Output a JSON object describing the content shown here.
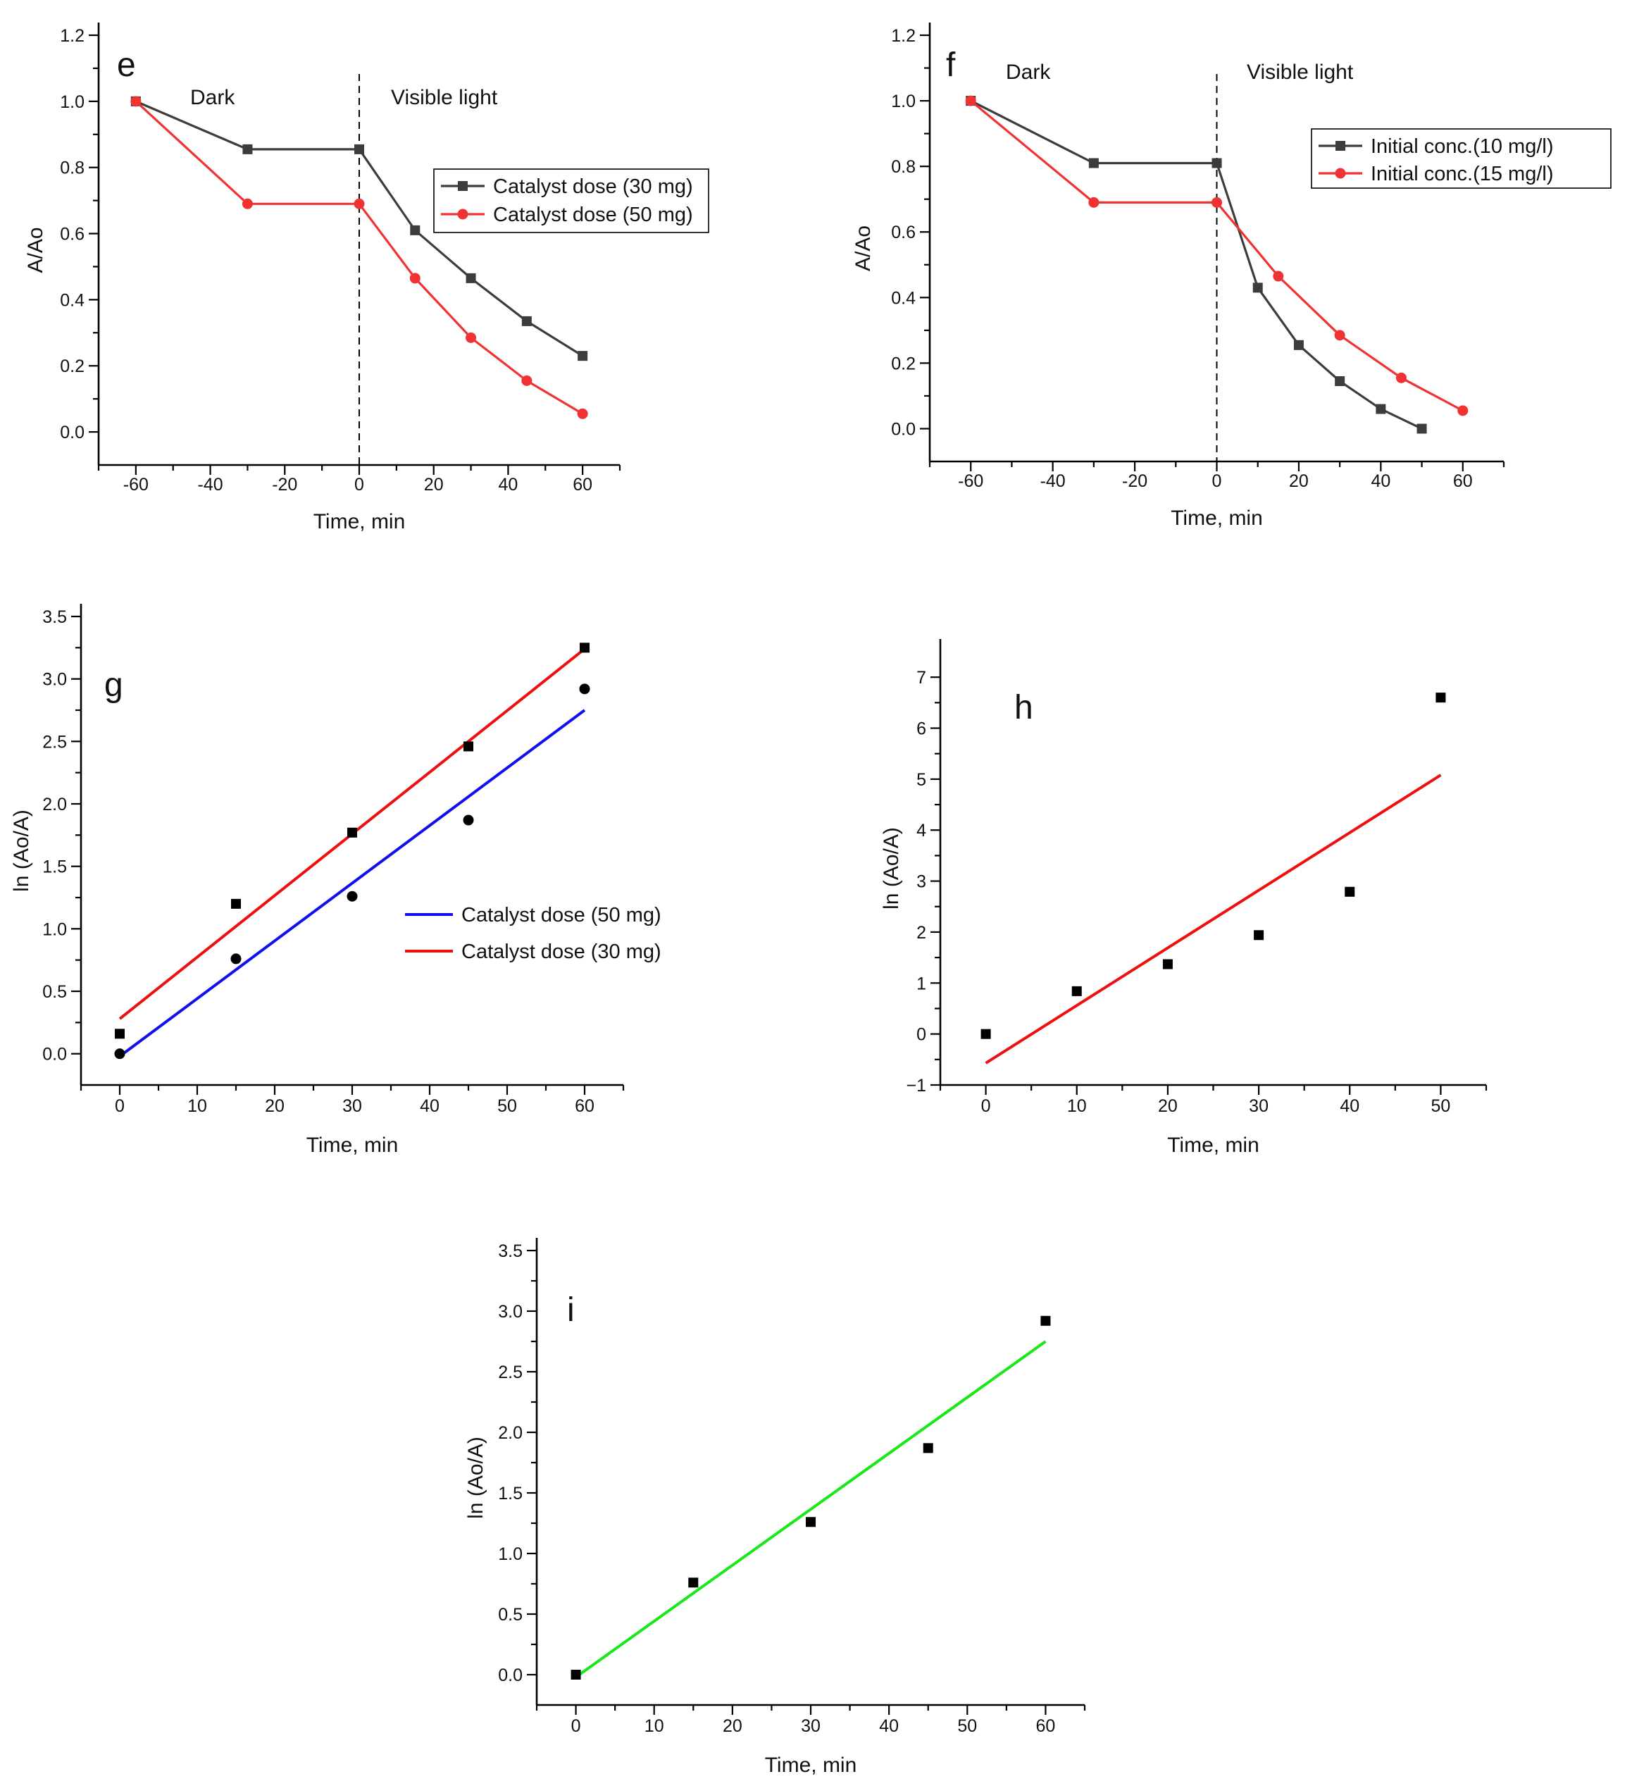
{
  "chart_data": [
    {
      "id": "e",
      "type": "line",
      "panel_label": "e",
      "xlabel": "Time, min",
      "ylabel": "A/Ao",
      "xlim": [
        -70,
        70
      ],
      "ylim": [
        -0.1,
        1.2
      ],
      "xticks": [
        -60,
        -40,
        -20,
        0,
        20,
        40,
        60
      ],
      "yticks": [
        0.0,
        0.2,
        0.4,
        0.6,
        0.8,
        1.0,
        1.2
      ],
      "ytick_labels": [
        "0.0",
        "0.2",
        "0.4",
        "0.6",
        "0.8",
        "1.0",
        "1.2"
      ],
      "region_labels": [
        "Dark",
        "Visible light"
      ],
      "divider_x": 0,
      "legend_position": "right-middle",
      "series": [
        {
          "name": "Catalyst dose (30 mg)",
          "color": "#3c3c3c",
          "marker": "square",
          "x": [
            -60,
            -30,
            0,
            15,
            30,
            45,
            60
          ],
          "y": [
            1.0,
            0.855,
            0.855,
            0.61,
            0.465,
            0.335,
            0.23
          ]
        },
        {
          "name": "Catalyst dose (50 mg)",
          "color": "#f03232",
          "marker": "circle",
          "x": [
            -60,
            -30,
            0,
            15,
            30,
            45,
            60
          ],
          "y": [
            1.0,
            0.69,
            0.69,
            0.465,
            0.285,
            0.155,
            0.055
          ]
        }
      ]
    },
    {
      "id": "f",
      "type": "line",
      "panel_label": "f",
      "xlabel": "Time, min",
      "ylabel": "A/Ao",
      "xlim": [
        -70,
        70
      ],
      "ylim": [
        -0.1,
        1.2
      ],
      "xticks": [
        -60,
        -40,
        -20,
        0,
        20,
        40,
        60
      ],
      "yticks": [
        0.0,
        0.2,
        0.4,
        0.6,
        0.8,
        1.0,
        1.2
      ],
      "ytick_labels": [
        "0.0",
        "0.2",
        "0.4",
        "0.6",
        "0.8",
        "1.0",
        "1.2"
      ],
      "region_labels": [
        "Dark",
        "Visible light"
      ],
      "divider_x": 0,
      "legend_position": "top-right",
      "series": [
        {
          "name": "Initial conc.(10 mg/l)",
          "color": "#3c3c3c",
          "marker": "square",
          "x": [
            -60,
            -30,
            0,
            10,
            20,
            30,
            40,
            50
          ],
          "y": [
            1.0,
            0.81,
            0.81,
            0.43,
            0.255,
            0.145,
            0.06,
            0.0
          ]
        },
        {
          "name": "Initial conc.(15 mg/l)",
          "color": "#f03232",
          "marker": "circle",
          "x": [
            -60,
            -30,
            0,
            15,
            30,
            45,
            60
          ],
          "y": [
            1.0,
            0.69,
            0.69,
            0.465,
            0.285,
            0.155,
            0.055
          ]
        }
      ]
    },
    {
      "id": "g",
      "type": "scatter",
      "panel_label": "g",
      "xlabel": "Time, min",
      "ylabel": "ln (Ao/A)",
      "xlim": [
        -5,
        65
      ],
      "ylim": [
        -0.25,
        3.5
      ],
      "xticks": [
        0,
        10,
        20,
        30,
        40,
        50,
        60
      ],
      "yticks": [
        0.0,
        0.5,
        1.0,
        1.5,
        2.0,
        2.5,
        3.0,
        3.5
      ],
      "ytick_labels": [
        "0.0",
        "0.5",
        "1.0",
        "1.5",
        "2.0",
        "2.5",
        "3.0",
        "3.5"
      ],
      "legend_position": "center-right",
      "series": [
        {
          "name": "Catalyst dose (50 mg)",
          "color": "#1010ee",
          "fit": [
            [
              0,
              -0.02
            ],
            [
              60,
              2.75
            ]
          ],
          "marker": "circle",
          "marker_color": "#000000",
          "x": [
            0,
            15,
            30,
            45,
            60
          ],
          "y": [
            0.0,
            0.76,
            1.26,
            1.87,
            2.92
          ]
        },
        {
          "name": "Catalyst dose (30 mg)",
          "color": "#ee1010",
          "fit": [
            [
              0,
              0.28
            ],
            [
              60,
              3.24
            ]
          ],
          "marker": "square",
          "marker_color": "#000000",
          "x": [
            0,
            15,
            30,
            45,
            60
          ],
          "y": [
            0.16,
            1.2,
            1.77,
            2.46,
            3.25
          ]
        }
      ]
    },
    {
      "id": "h",
      "type": "scatter",
      "panel_label": "h",
      "xlabel": "Time, min",
      "ylabel": "ln (Ao/A)",
      "xlim": [
        -5,
        55
      ],
      "ylim": [
        -1,
        7.5
      ],
      "xticks": [
        0,
        10,
        20,
        30,
        40,
        50
      ],
      "yticks": [
        -1,
        0,
        1,
        2,
        3,
        4,
        5,
        6,
        7
      ],
      "ytick_labels": [
        "−1",
        "0",
        "1",
        "2",
        "3",
        "4",
        "5",
        "6",
        "7"
      ],
      "series": [
        {
          "name": "",
          "color": "#ee1010",
          "fit": [
            [
              0,
              -0.57
            ],
            [
              50,
              5.08
            ]
          ],
          "marker": "square",
          "marker_color": "#000000",
          "x": [
            0,
            10,
            20,
            30,
            40,
            50
          ],
          "y": [
            0.0,
            0.84,
            1.37,
            1.94,
            2.79,
            6.6
          ]
        }
      ]
    },
    {
      "id": "i",
      "type": "scatter",
      "panel_label": "i",
      "xlabel": "Time, min",
      "ylabel": "ln (Ao/A)",
      "xlim": [
        -5,
        65
      ],
      "ylim": [
        -0.25,
        3.5
      ],
      "xticks": [
        0,
        10,
        20,
        30,
        40,
        50,
        60
      ],
      "yticks": [
        0.0,
        0.5,
        1.0,
        1.5,
        2.0,
        2.5,
        3.0,
        3.5
      ],
      "ytick_labels": [
        "0.0",
        "0.5",
        "1.0",
        "1.5",
        "2.0",
        "2.5",
        "3.0",
        "3.5"
      ],
      "series": [
        {
          "name": "",
          "color": "#18e818",
          "fit": [
            [
              0,
              -0.02
            ],
            [
              60,
              2.75
            ]
          ],
          "marker": "square",
          "marker_color": "#000000",
          "x": [
            0,
            15,
            30,
            45,
            60
          ],
          "y": [
            0.0,
            0.76,
            1.26,
            1.87,
            2.92
          ]
        }
      ]
    }
  ]
}
